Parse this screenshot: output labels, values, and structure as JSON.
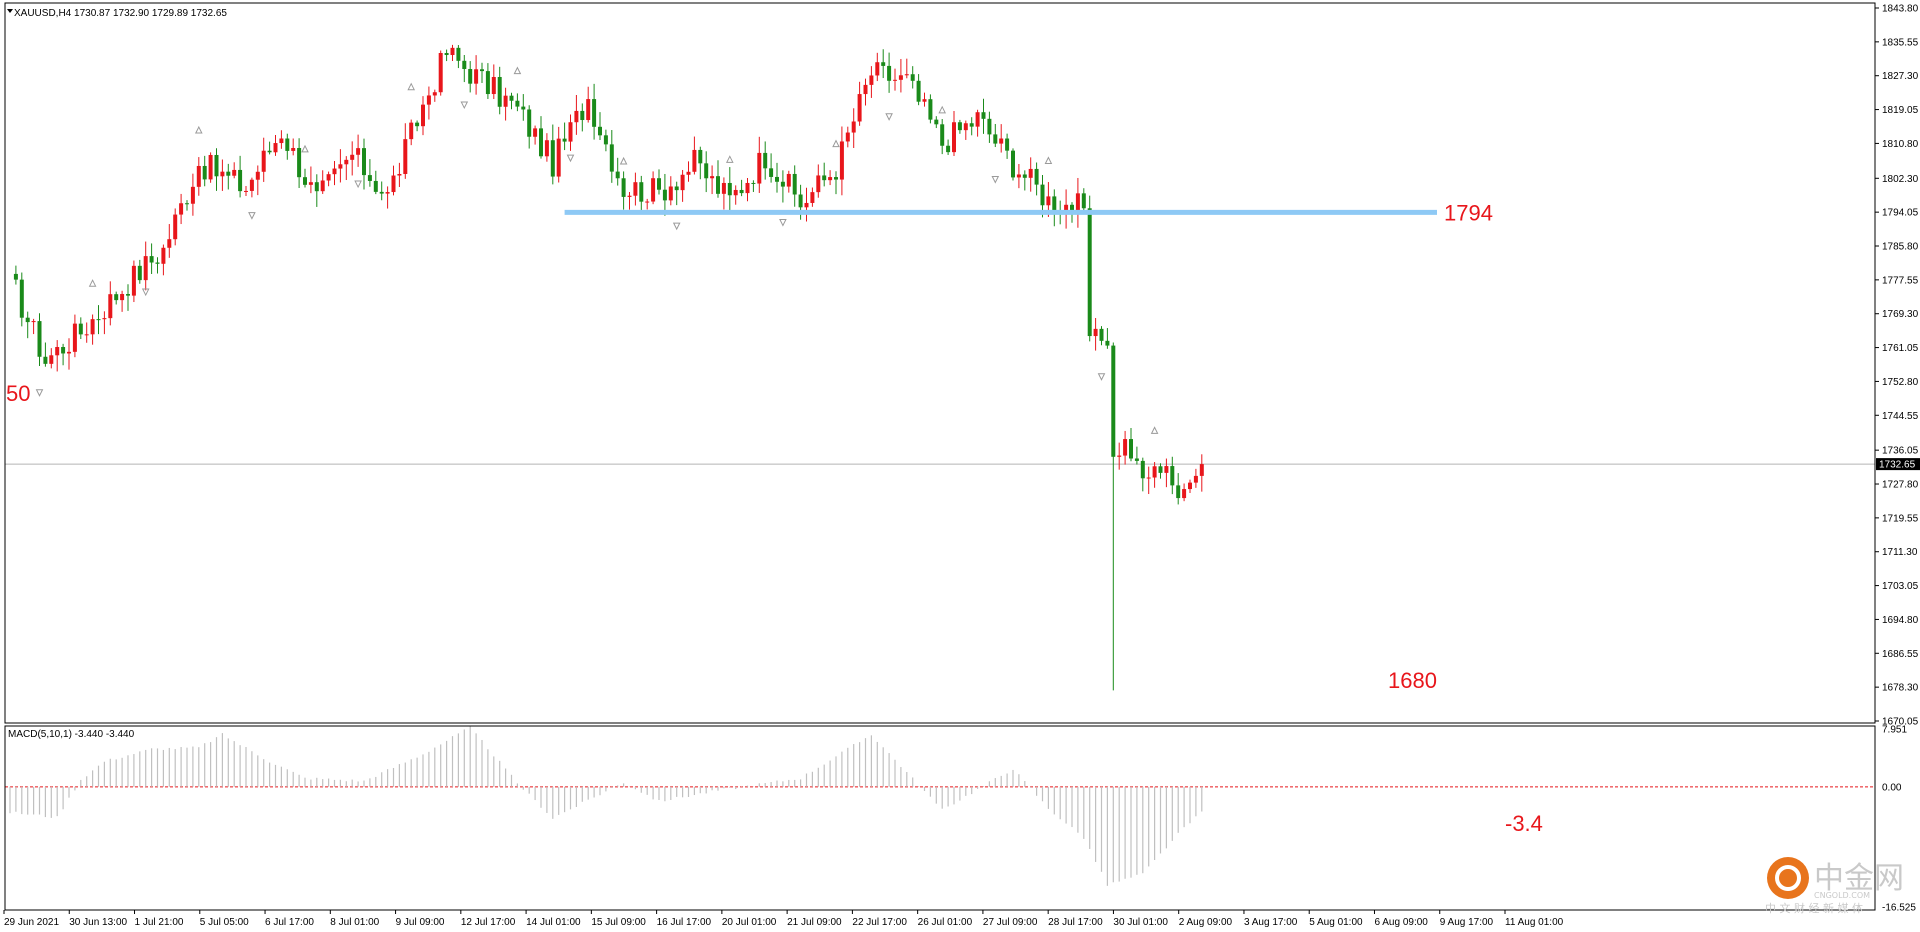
{
  "header": {
    "symbol_line": "XAUUSD,H4  1730.87 1732.90 1729.89 1732.65"
  },
  "macd_header": "MACD(5,10,1) -3.440 -3.440",
  "colors": {
    "bull": "#e8161b",
    "bear": "#1a8a1a",
    "level": "#8ec9f5",
    "annotation": "#e8161b",
    "zero_line": "#e8161b",
    "macd_bar": "#c0c0c0",
    "fractal": "#9a9a9a"
  },
  "chart_data": [
    {
      "type": "candlestick",
      "symbol": "XAUUSD",
      "timeframe": "H4",
      "ylim": [
        1670.05,
        1843.8
      ],
      "price_ticks": [
        "1843.80",
        "1835.55",
        "1827.30",
        "1819.05",
        "1810.80",
        "1802.30",
        "1794.05",
        "1785.80",
        "1777.55",
        "1769.30",
        "1761.05",
        "1752.80",
        "1744.55",
        "1736.05",
        "1727.80",
        "1719.55",
        "1711.30",
        "1703.05",
        "1694.80",
        "1686.55",
        "1678.30",
        "1670.05"
      ],
      "current_price": "1732.65",
      "x_labels": [
        "29 Jun 2021",
        "30 Jun 13:00",
        "1 Jul 21:00",
        "5 Jul 05:00",
        "6 Jul 17:00",
        "8 Jul 01:00",
        "9 Jul 09:00",
        "12 Jul 17:00",
        "14 Jul 01:00",
        "15 Jul 09:00",
        "16 Jul 17:00",
        "20 Jul 01:00",
        "21 Jul 09:00",
        "22 Jul 17:00",
        "26 Jul 01:00",
        "27 Jul 09:00",
        "28 Jul 17:00",
        "30 Jul 01:00",
        "2 Aug 09:00",
        "3 Aug 17:00",
        "5 Aug 01:00",
        "6 Aug 09:00",
        "9 Aug 17:00",
        "11 Aug 01:00"
      ],
      "close_path": [
        [
          0,
          1778
        ],
        [
          6,
          1758
        ],
        [
          12,
          1765
        ],
        [
          20,
          1777
        ],
        [
          26,
          1785
        ],
        [
          32,
          1806
        ],
        [
          40,
          1800
        ],
        [
          46,
          1814
        ],
        [
          52,
          1797
        ],
        [
          58,
          1808
        ],
        [
          64,
          1798
        ],
        [
          70,
          1820
        ],
        [
          74,
          1833
        ],
        [
          80,
          1826
        ],
        [
          86,
          1819
        ],
        [
          92,
          1806
        ],
        [
          98,
          1822
        ],
        [
          104,
          1800
        ],
        [
          110,
          1799
        ],
        [
          116,
          1806
        ],
        [
          122,
          1797
        ],
        [
          128,
          1808
        ],
        [
          134,
          1796
        ],
        [
          140,
          1805
        ],
        [
          146,
          1828
        ],
        [
          152,
          1826
        ],
        [
          158,
          1811
        ],
        [
          164,
          1817
        ],
        [
          170,
          1806
        ],
        [
          176,
          1797
        ],
        [
          182,
          1795
        ]
      ],
      "drop_path": [
        [
          182,
          1795
        ],
        [
          183,
          1764
        ],
        [
          186,
          1763
        ],
        [
          187,
          1734
        ],
        [
          189,
          1738
        ],
        [
          192,
          1729
        ],
        [
          196,
          1733
        ],
        [
          198,
          1723
        ],
        [
          200,
          1730
        ],
        [
          202,
          1732.65
        ]
      ],
      "annotations": [
        {
          "label": "1794",
          "price": 1794
        },
        {
          "label": "1680",
          "price": 1680
        },
        {
          "label": "50",
          "price": 1750
        }
      ]
    },
    {
      "type": "bar",
      "name": "MACD(5,10,1)",
      "value": -3.44,
      "ylim": [
        -16.525,
        7.951
      ],
      "ticks": [
        "7.951",
        "0.00",
        "-16.525"
      ],
      "annotation": "-3.4",
      "macd_path": [
        [
          0,
          -3.5
        ],
        [
          8,
          -4.2
        ],
        [
          12,
          1
        ],
        [
          16,
          3.5
        ],
        [
          24,
          5.2
        ],
        [
          32,
          5.4
        ],
        [
          36,
          7.2
        ],
        [
          44,
          3.5
        ],
        [
          50,
          1.2
        ],
        [
          60,
          0.8
        ],
        [
          70,
          4.5
        ],
        [
          78,
          8.2
        ],
        [
          86,
          0.5
        ],
        [
          92,
          -4.3
        ],
        [
          104,
          0.6
        ],
        [
          110,
          -2
        ],
        [
          120,
          -0.5
        ],
        [
          134,
          1.2
        ],
        [
          146,
          7.2
        ],
        [
          152,
          2
        ],
        [
          158,
          -3.2
        ],
        [
          170,
          2.5
        ],
        [
          176,
          -3
        ],
        [
          182,
          -7
        ],
        [
          186,
          -13.5
        ],
        [
          192,
          -12
        ],
        [
          198,
          -6.5
        ],
        [
          202,
          -3.44
        ]
      ]
    }
  ],
  "watermark": {
    "brand": "中金网",
    "domain": "CNGOLD.COM",
    "tagline": "中 文 财 经 新 媒 体"
  }
}
